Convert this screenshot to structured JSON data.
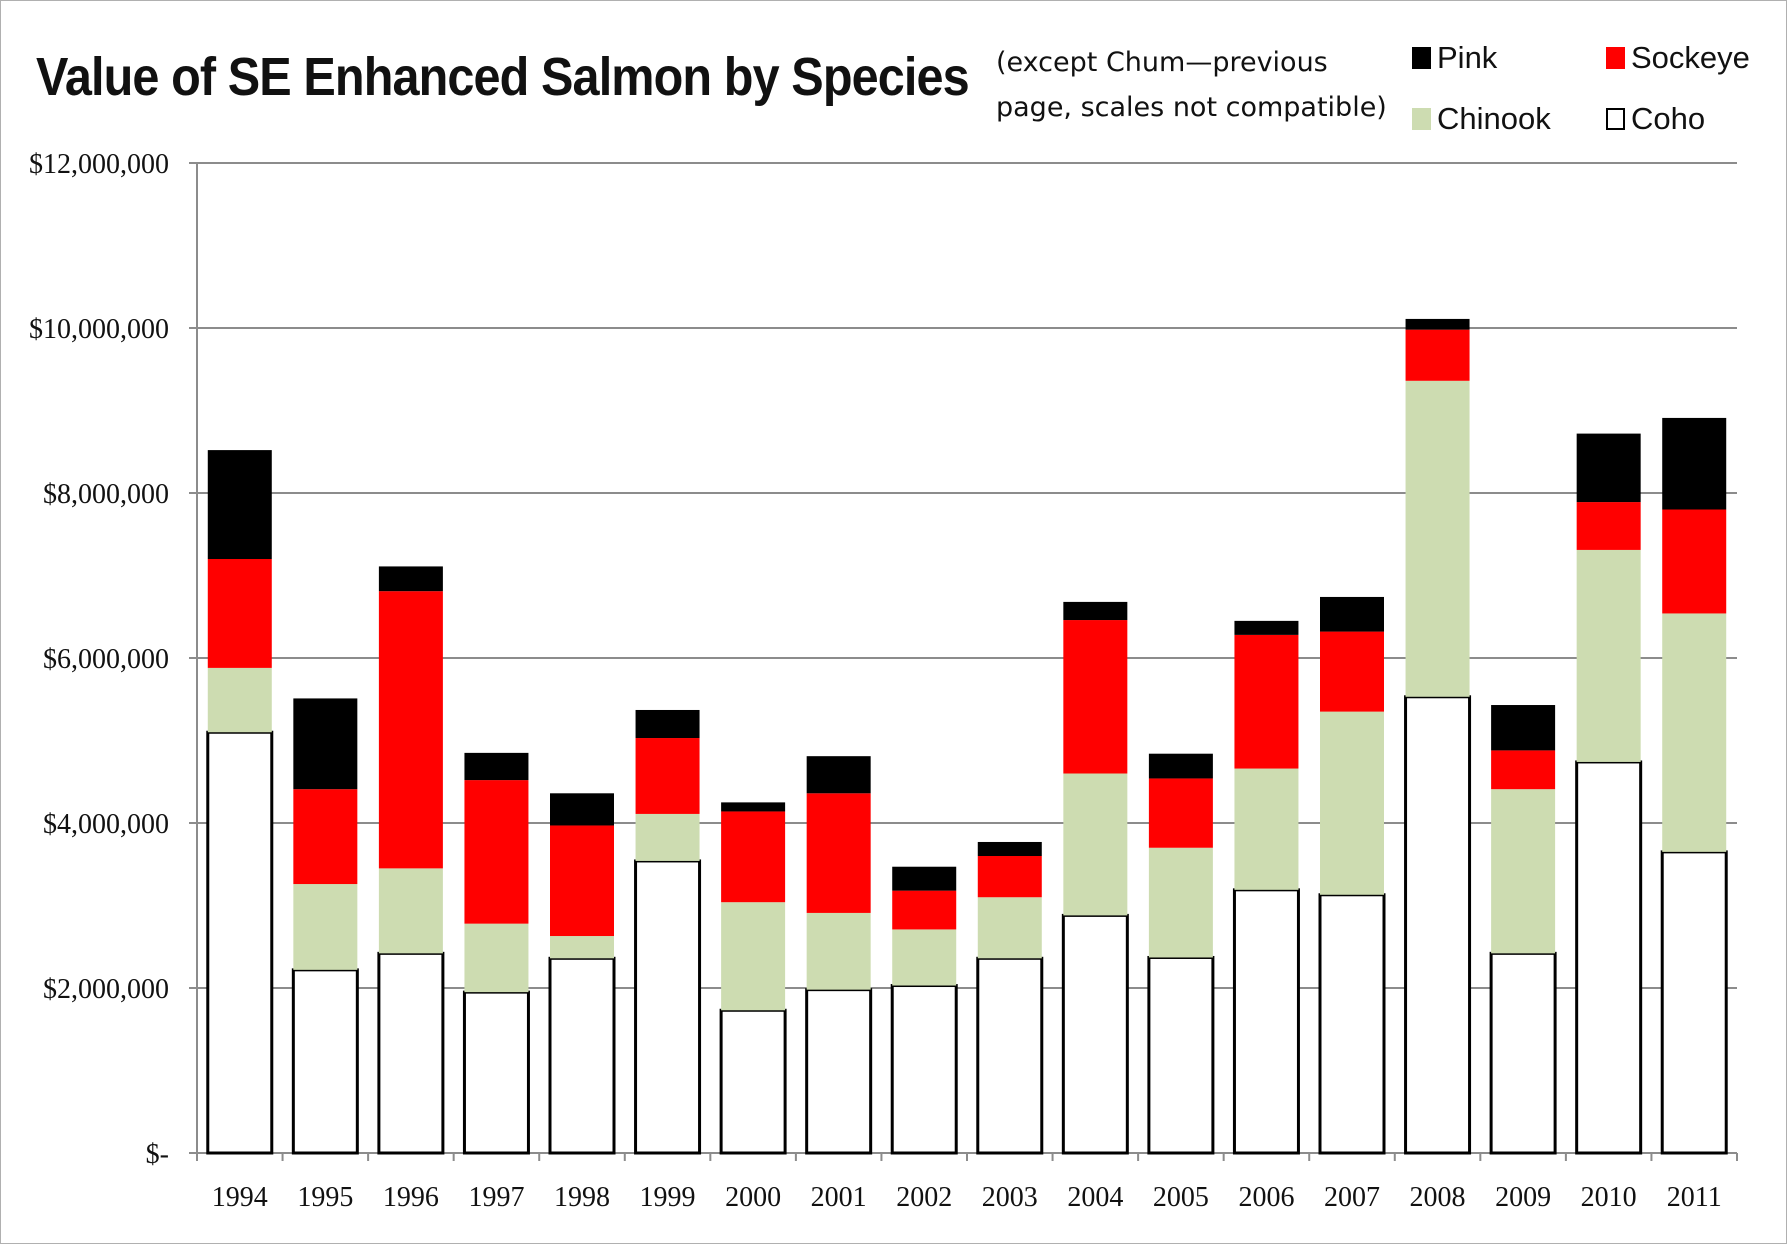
{
  "chart_data": {
    "type": "bar",
    "stacked": true,
    "title": "Value of SE Enhanced Salmon by Species",
    "annotation_lines": [
      "(except Chum—previous",
      "page, scales not compatible)"
    ],
    "categories": [
      "1994",
      "1995",
      "1996",
      "1997",
      "1998",
      "1999",
      "2000",
      "2001",
      "2002",
      "2003",
      "2004",
      "2005",
      "2006",
      "2007",
      "2008",
      "2009",
      "2010",
      "2011"
    ],
    "series": [
      {
        "name": "Coho",
        "color": "#ffffff",
        "values": [
          5100000,
          2220000,
          2420000,
          1950000,
          2360000,
          3540000,
          1730000,
          1980000,
          2030000,
          2360000,
          2880000,
          2370000,
          3190000,
          3130000,
          5530000,
          2420000,
          4740000,
          3650000
        ]
      },
      {
        "name": "Chinook",
        "color": "#cddcb1",
        "values": [
          780000,
          1040000,
          1030000,
          830000,
          270000,
          570000,
          1310000,
          930000,
          680000,
          740000,
          1720000,
          1330000,
          1470000,
          2220000,
          3830000,
          1990000,
          2570000,
          2890000
        ]
      },
      {
        "name": "Sockeye",
        "color": "#ff0000",
        "values": [
          1320000,
          1150000,
          3360000,
          1740000,
          1340000,
          920000,
          1100000,
          1450000,
          470000,
          500000,
          1860000,
          840000,
          1620000,
          970000,
          620000,
          470000,
          580000,
          1260000
        ]
      },
      {
        "name": "Pink",
        "color": "#000000",
        "values": [
          1320000,
          1100000,
          300000,
          330000,
          390000,
          340000,
          110000,
          450000,
          290000,
          170000,
          220000,
          300000,
          170000,
          420000,
          130000,
          550000,
          830000,
          1110000
        ]
      }
    ],
    "legend": [
      {
        "name": "Pink",
        "color": "#000000"
      },
      {
        "name": "Sockeye",
        "color": "#ff0000"
      },
      {
        "name": "Chinook",
        "color": "#cddcb1"
      },
      {
        "name": "Coho",
        "color": "#ffffff"
      }
    ],
    "legend_position": "top-right",
    "ylim": [
      0,
      12000000
    ],
    "yticks": [
      0,
      2000000,
      4000000,
      6000000,
      8000000,
      10000000,
      12000000
    ],
    "ytick_labels": [
      "$-",
      "$2,000,000",
      "$4,000,000",
      "$6,000,000",
      "$8,000,000",
      "$10,000,000",
      "$12,000,000"
    ],
    "grid": true,
    "xlabel": "",
    "ylabel": ""
  }
}
